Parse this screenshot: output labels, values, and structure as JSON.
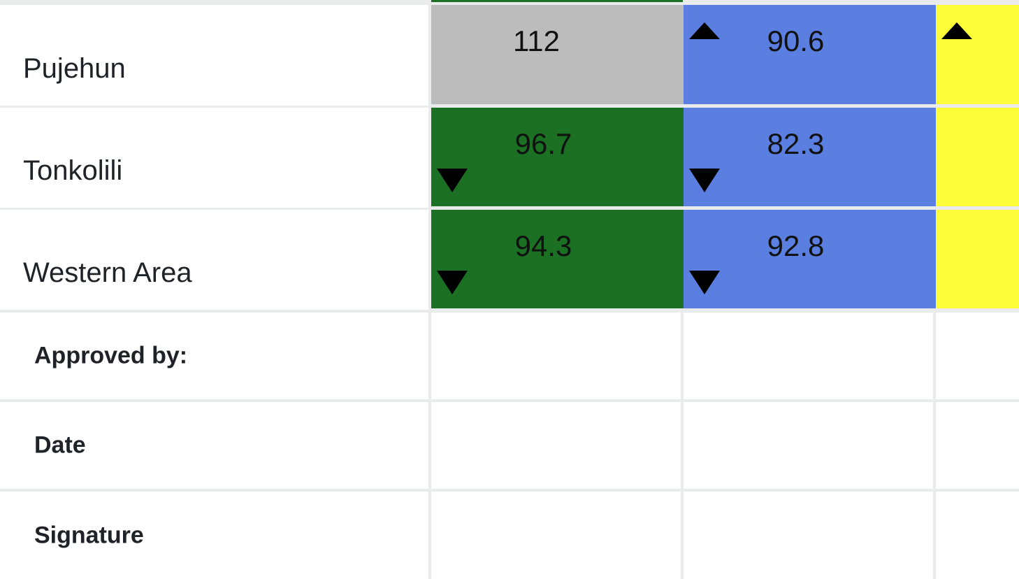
{
  "colors": {
    "green": "#1b7024",
    "blue": "#5b7fe1",
    "yellow": "#fdfd3a",
    "grey": "#bcbcbc"
  },
  "rows": [
    {
      "label": "Pujehun",
      "cells": [
        {
          "value": "112",
          "color": "grey",
          "indicator": "none"
        },
        {
          "value": "90.6",
          "color": "blue",
          "indicator": "up"
        },
        {
          "value": "",
          "color": "yellow",
          "indicator": "up"
        }
      ]
    },
    {
      "label": "Tonkolili",
      "cells": [
        {
          "value": "96.7",
          "color": "green",
          "indicator": "down"
        },
        {
          "value": "82.3",
          "color": "blue",
          "indicator": "down"
        },
        {
          "value": "",
          "color": "yellow",
          "indicator": "none"
        }
      ]
    },
    {
      "label": "Western Area",
      "cells": [
        {
          "value": "94.3",
          "color": "green",
          "indicator": "down"
        },
        {
          "value": "92.8",
          "color": "blue",
          "indicator": "down"
        },
        {
          "value": "",
          "color": "yellow",
          "indicator": "none"
        }
      ]
    }
  ],
  "footer": {
    "approved_by": "Approved by:",
    "date": "Date",
    "signature": "Signature"
  }
}
